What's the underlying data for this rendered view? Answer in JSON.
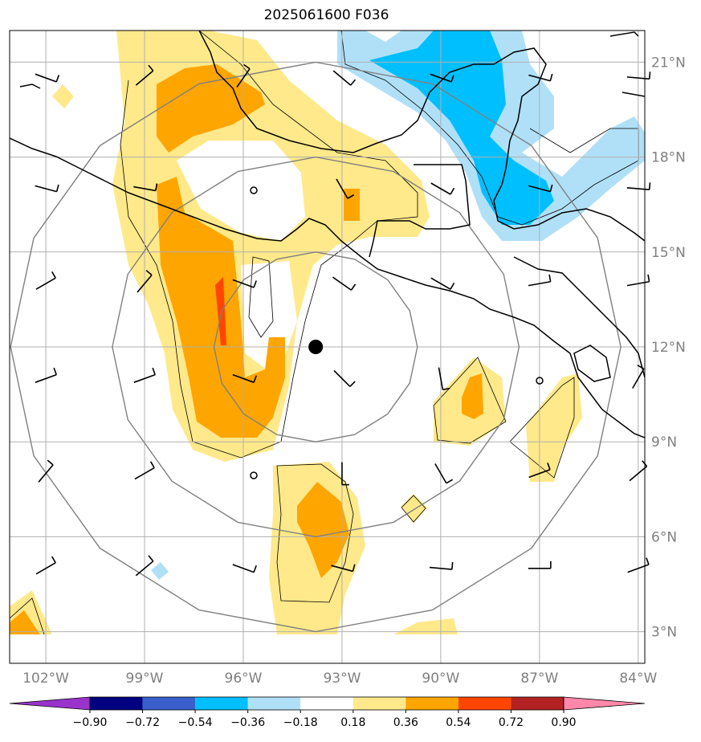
{
  "title": "2025061600 F036",
  "map": {
    "extent": {
      "lon_min": -103.1,
      "lon_max": -83.8,
      "lat_min": 2.0,
      "lat_max": 22.0
    },
    "lat_ticks": [
      3,
      6,
      9,
      12,
      15,
      18,
      21
    ],
    "lat_labels": [
      "3°N",
      "6°N",
      "9°N",
      "12°N",
      "15°N",
      "18°N",
      "21°N"
    ],
    "lon_ticks": [
      -102,
      -99,
      -96,
      -93,
      -90,
      -87,
      -84
    ],
    "lon_labels": [
      "102°W",
      "99°W",
      "96°W",
      "93°W",
      "90°W",
      "87°W",
      "84°W"
    ],
    "center_marker": {
      "lon": -93.8,
      "lat": 12.0
    },
    "range_rings_deg": [
      3,
      6,
      9
    ],
    "grid_color": "#b0b0b0",
    "ring_color": "#808080",
    "coast_color": "#000000"
  },
  "colorbar": {
    "levels": [
      "−0.90",
      "−0.72",
      "−0.54",
      "−0.36",
      "−0.18",
      "0.18",
      "0.36",
      "0.54",
      "0.72",
      "0.90"
    ],
    "colors": [
      "#9933cc",
      "#000080",
      "#3a5fcd",
      "#00bfff",
      "#b0e0f8",
      "#ffffff",
      "#ffe98a",
      "#ffa500",
      "#ff4500",
      "#b22222",
      "#ff88aa"
    ]
  },
  "fill_colors": {
    "light_yellow": "#ffe98a",
    "orange": "#ffa500",
    "red_orange": "#ff4500",
    "light_blue": "#b0e0f8",
    "blue": "#00bfff"
  }
}
